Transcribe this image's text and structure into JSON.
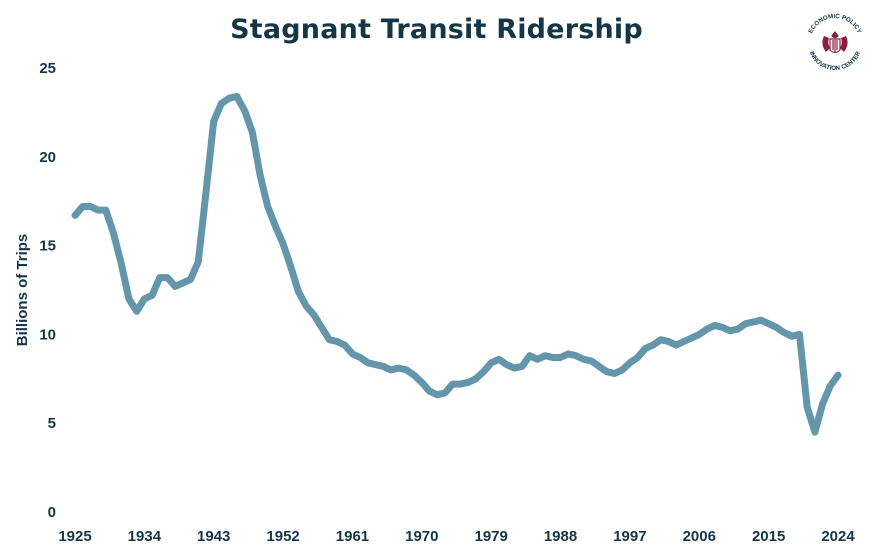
{
  "title": "Stagnant Transit Ridership",
  "logo": {
    "text": "ECONOMIC POLICY INNOVATION CENTER",
    "icon": "eagle-seal-icon"
  },
  "colors": {
    "line": "#6496ab",
    "text": "#153646",
    "logo": "#8b1e3f"
  },
  "chart_data": {
    "type": "line",
    "title": "Stagnant Transit Ridership",
    "xlabel": "",
    "ylabel": "Billions of Trips",
    "xlim": [
      1925,
      2024
    ],
    "ylim": [
      0,
      25
    ],
    "x_ticks": [
      1925,
      1934,
      1943,
      1952,
      1961,
      1970,
      1979,
      1988,
      1997,
      2006,
      2015,
      2024
    ],
    "y_ticks": [
      0,
      5,
      10,
      15,
      20,
      25
    ],
    "grid": false,
    "legend": "none",
    "series": [
      {
        "x": [
          1925,
          1926,
          1927,
          1928,
          1929,
          1930,
          1931,
          1932,
          1933,
          1934,
          1935,
          1936,
          1937,
          1938,
          1939,
          1940,
          1941,
          1942,
          1943,
          1944,
          1945,
          1946,
          1947,
          1948,
          1949,
          1950,
          1951,
          1952,
          1953,
          1954,
          1955,
          1956,
          1957,
          1958,
          1959,
          1960,
          1961,
          1962,
          1963,
          1964,
          1965,
          1966,
          1967,
          1968,
          1969,
          1970,
          1971,
          1972,
          1973,
          1974,
          1975,
          1976,
          1977,
          1978,
          1979,
          1980,
          1981,
          1982,
          1983,
          1984,
          1985,
          1986,
          1987,
          1988,
          1989,
          1990,
          1991,
          1992,
          1993,
          1994,
          1995,
          1996,
          1997,
          1998,
          1999,
          2000,
          2001,
          2002,
          2003,
          2004,
          2005,
          2006,
          2007,
          2008,
          2009,
          2010,
          2011,
          2012,
          2013,
          2014,
          2015,
          2016,
          2017,
          2018,
          2019,
          2020,
          2021,
          2022,
          2023,
          2024
        ],
        "values": [
          16.7,
          17.2,
          17.2,
          17.0,
          17.0,
          15.7,
          14.0,
          12.0,
          11.3,
          12.0,
          12.2,
          13.2,
          13.2,
          12.7,
          12.9,
          13.1,
          14.1,
          18.0,
          22.0,
          23.0,
          23.3,
          23.4,
          22.6,
          21.4,
          19.0,
          17.2,
          16.1,
          15.1,
          13.8,
          12.4,
          11.6,
          11.1,
          10.4,
          9.7,
          9.6,
          9.4,
          8.9,
          8.7,
          8.4,
          8.3,
          8.2,
          8.0,
          8.1,
          8.0,
          7.7,
          7.3,
          6.8,
          6.6,
          6.7,
          7.2,
          7.2,
          7.3,
          7.5,
          7.9,
          8.4,
          8.6,
          8.3,
          8.1,
          8.2,
          8.8,
          8.6,
          8.8,
          8.7,
          8.7,
          8.9,
          8.8,
          8.6,
          8.5,
          8.2,
          7.9,
          7.8,
          8.0,
          8.4,
          8.7,
          9.2,
          9.4,
          9.7,
          9.6,
          9.4,
          9.6,
          9.8,
          10.0,
          10.3,
          10.5,
          10.4,
          10.2,
          10.3,
          10.6,
          10.7,
          10.8,
          10.6,
          10.4,
          10.1,
          9.9,
          10.0,
          5.9,
          4.5,
          6.1,
          7.1,
          7.7
        ]
      }
    ]
  }
}
